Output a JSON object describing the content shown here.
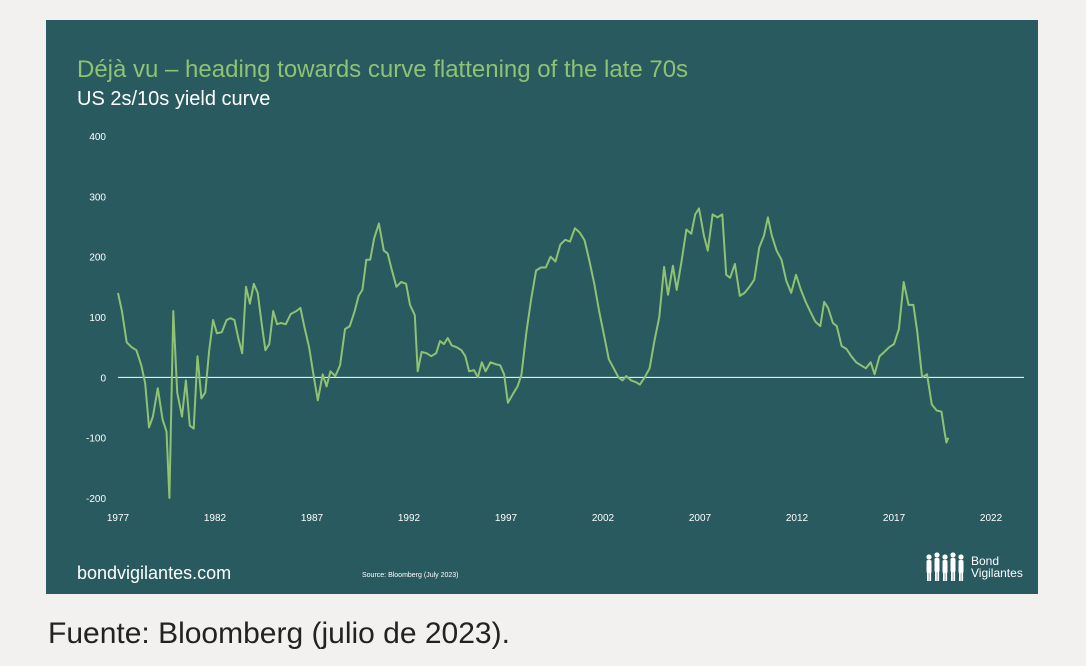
{
  "chart_data": {
    "type": "line",
    "title": "Déjà vu – heading towards curve flattening of the late 70s",
    "subtitle": "US 2s/10s yield curve",
    "xlim": [
      1977,
      2023.7
    ],
    "ylim": [
      -200,
      400
    ],
    "yticks": [
      400,
      300,
      200,
      100,
      0,
      -100,
      -200
    ],
    "xticks": [
      1977,
      1982,
      1987,
      1992,
      1997,
      2002,
      2007,
      2012,
      2017,
      2022
    ],
    "grid": false,
    "zero_line": true,
    "series": [
      {
        "name": "",
        "color": "#8fc273",
        "points": [
          [
            1977.0,
            140
          ],
          [
            1977.2,
            110
          ],
          [
            1977.45,
            58
          ],
          [
            1977.7,
            50
          ],
          [
            1977.95,
            45
          ],
          [
            1978.2,
            20
          ],
          [
            1978.4,
            -10
          ],
          [
            1978.6,
            -83
          ],
          [
            1978.8,
            -65
          ],
          [
            1979.05,
            -18
          ],
          [
            1979.3,
            -70
          ],
          [
            1979.5,
            -90
          ],
          [
            1979.65,
            -200
          ],
          [
            1979.85,
            110
          ],
          [
            1980.05,
            -25
          ],
          [
            1980.3,
            -65
          ],
          [
            1980.5,
            -5
          ],
          [
            1980.7,
            -80
          ],
          [
            1980.9,
            -85
          ],
          [
            1981.1,
            35
          ],
          [
            1981.3,
            -35
          ],
          [
            1981.5,
            -25
          ],
          [
            1981.7,
            45
          ],
          [
            1981.9,
            95
          ],
          [
            1982.1,
            73
          ],
          [
            1982.35,
            75
          ],
          [
            1982.6,
            95
          ],
          [
            1982.8,
            98
          ],
          [
            1983.0,
            95
          ],
          [
            1983.2,
            65
          ],
          [
            1983.4,
            40
          ],
          [
            1983.6,
            150
          ],
          [
            1983.8,
            122
          ],
          [
            1984.0,
            155
          ],
          [
            1984.2,
            140
          ],
          [
            1984.4,
            90
          ],
          [
            1984.6,
            45
          ],
          [
            1984.8,
            55
          ],
          [
            1985.0,
            110
          ],
          [
            1985.2,
            88
          ],
          [
            1985.4,
            90
          ],
          [
            1985.65,
            88
          ],
          [
            1985.9,
            105
          ],
          [
            1986.2,
            110
          ],
          [
            1986.4,
            115
          ],
          [
            1986.6,
            85
          ],
          [
            1986.85,
            50
          ],
          [
            1987.1,
            0
          ],
          [
            1987.3,
            -38
          ],
          [
            1987.55,
            5
          ],
          [
            1987.75,
            -15
          ],
          [
            1987.95,
            10
          ],
          [
            1988.2,
            2
          ],
          [
            1988.45,
            20
          ],
          [
            1988.7,
            80
          ],
          [
            1988.95,
            85
          ],
          [
            1989.2,
            110
          ],
          [
            1989.4,
            135
          ],
          [
            1989.6,
            145
          ],
          [
            1989.8,
            195
          ],
          [
            1990.0,
            195
          ],
          [
            1990.2,
            230
          ],
          [
            1990.45,
            255
          ],
          [
            1990.7,
            210
          ],
          [
            1990.9,
            205
          ],
          [
            1991.1,
            180
          ],
          [
            1991.35,
            150
          ],
          [
            1991.6,
            158
          ],
          [
            1991.85,
            155
          ],
          [
            1992.05,
            120
          ],
          [
            1992.3,
            103
          ],
          [
            1992.45,
            10
          ],
          [
            1992.65,
            42
          ],
          [
            1992.9,
            40
          ],
          [
            1993.15,
            35
          ],
          [
            1993.4,
            40
          ],
          [
            1993.6,
            60
          ],
          [
            1993.8,
            55
          ],
          [
            1994.0,
            65
          ],
          [
            1994.2,
            53
          ],
          [
            1994.45,
            50
          ],
          [
            1994.7,
            45
          ],
          [
            1994.9,
            35
          ],
          [
            1995.1,
            10
          ],
          [
            1995.35,
            12
          ],
          [
            1995.55,
            0
          ],
          [
            1995.75,
            25
          ],
          [
            1995.95,
            10
          ],
          [
            1996.2,
            25
          ],
          [
            1996.45,
            22
          ],
          [
            1996.7,
            20
          ],
          [
            1996.9,
            5
          ],
          [
            1997.1,
            -42
          ],
          [
            1997.35,
            -28
          ],
          [
            1997.6,
            -15
          ],
          [
            1997.8,
            5
          ],
          [
            1998.05,
            75
          ],
          [
            1998.3,
            130
          ],
          [
            1998.55,
            177
          ],
          [
            1998.8,
            182
          ],
          [
            1999.05,
            182
          ],
          [
            1999.3,
            200
          ],
          [
            1999.55,
            192
          ],
          [
            1999.8,
            220
          ],
          [
            2000.05,
            228
          ],
          [
            2000.3,
            225
          ],
          [
            2000.55,
            247
          ],
          [
            2000.8,
            240
          ],
          [
            2001.05,
            227
          ],
          [
            2001.3,
            193
          ],
          [
            2001.55,
            155
          ],
          [
            2001.8,
            110
          ],
          [
            2002.05,
            70
          ],
          [
            2002.3,
            30
          ],
          [
            2002.55,
            15
          ],
          [
            2002.8,
            0
          ],
          [
            2003.0,
            -5
          ],
          [
            2003.2,
            2
          ],
          [
            2003.45,
            -5
          ],
          [
            2003.7,
            -8
          ],
          [
            2003.9,
            -12
          ],
          [
            2004.15,
            0
          ],
          [
            2004.4,
            15
          ],
          [
            2004.65,
            60
          ],
          [
            2004.9,
            100
          ],
          [
            2005.15,
            183
          ],
          [
            2005.35,
            137
          ],
          [
            2005.6,
            185
          ],
          [
            2005.8,
            145
          ],
          [
            2006.05,
            193
          ],
          [
            2006.3,
            245
          ],
          [
            2006.55,
            238
          ],
          [
            2006.75,
            270
          ],
          [
            2006.95,
            280
          ],
          [
            2007.2,
            235
          ],
          [
            2007.4,
            210
          ],
          [
            2007.65,
            270
          ],
          [
            2007.9,
            265
          ],
          [
            2008.15,
            270
          ],
          [
            2008.35,
            170
          ],
          [
            2008.55,
            165
          ],
          [
            2008.8,
            188
          ],
          [
            2009.05,
            135
          ],
          [
            2009.3,
            140
          ],
          [
            2009.55,
            150
          ],
          [
            2009.8,
            162
          ],
          [
            2010.05,
            215
          ],
          [
            2010.3,
            235
          ],
          [
            2010.5,
            265
          ],
          [
            2010.7,
            235
          ],
          [
            2010.95,
            210
          ],
          [
            2011.2,
            195
          ],
          [
            2011.45,
            160
          ],
          [
            2011.7,
            140
          ],
          [
            2011.95,
            170
          ],
          [
            2012.2,
            145
          ],
          [
            2012.45,
            125
          ],
          [
            2012.7,
            108
          ],
          [
            2012.95,
            92
          ],
          [
            2013.2,
            85
          ],
          [
            2013.4,
            125
          ],
          [
            2013.6,
            115
          ],
          [
            2013.85,
            90
          ],
          [
            2014.05,
            85
          ],
          [
            2014.3,
            52
          ],
          [
            2014.55,
            47
          ],
          [
            2014.8,
            35
          ],
          [
            2015.05,
            25
          ],
          [
            2015.3,
            20
          ],
          [
            2015.55,
            15
          ],
          [
            2015.8,
            25
          ],
          [
            2016.0,
            5
          ],
          [
            2016.25,
            35
          ],
          [
            2016.5,
            42
          ],
          [
            2016.75,
            50
          ],
          [
            2017.0,
            55
          ],
          [
            2017.25,
            80
          ],
          [
            2017.5,
            158
          ],
          [
            2017.75,
            120
          ],
          [
            2018.0,
            120
          ],
          [
            2018.2,
            75
          ],
          [
            2018.45,
            0
          ],
          [
            2018.7,
            5
          ],
          [
            2018.95,
            -45
          ],
          [
            2019.2,
            -55
          ],
          [
            2019.45,
            -57
          ],
          [
            2019.6,
            -90
          ],
          [
            2019.7,
            -108
          ],
          [
            2019.8,
            -100
          ]
        ]
      }
    ]
  },
  "footer": {
    "site": "bondvigilantes.com",
    "source": "Source: Bloomberg (July 2023)",
    "logo_line1": "Bond",
    "logo_line2": "Vigilantes"
  },
  "caption": "Fuente: Bloomberg (julio de 2023)."
}
